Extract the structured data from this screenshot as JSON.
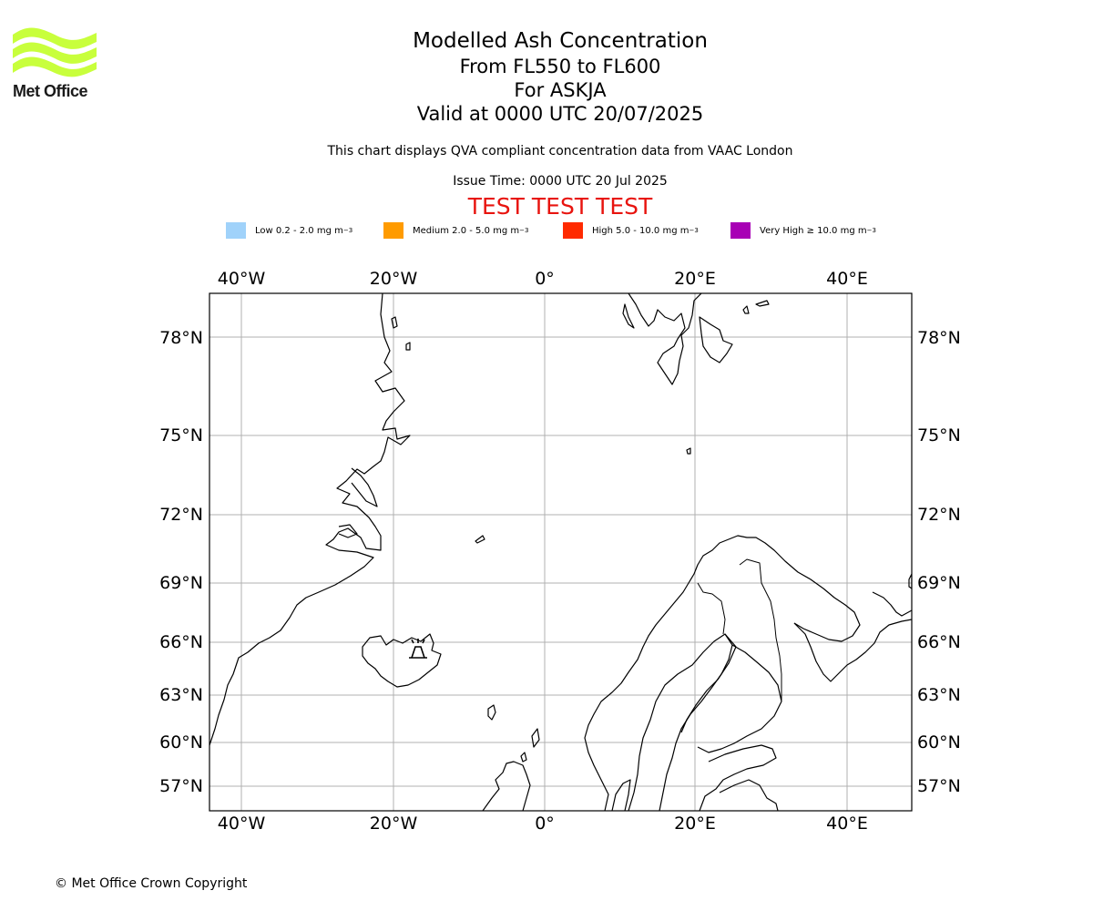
{
  "logo": {
    "text": "Met Office",
    "color": "#c8ff3c"
  },
  "title": {
    "main": "Modelled Ash Concentration",
    "levels": "From FL550 to FL600",
    "volcano": "For ASKJA",
    "valid": "Valid at 0000 UTC 20/07/2025"
  },
  "description": "This chart displays QVA compliant concentration data from VAAC London",
  "issue_time": "Issue Time: 0000 UTC 20 Jul 2025",
  "test_banner": "TEST TEST TEST",
  "legend": [
    {
      "label": "Low 0.2 - 2.0 mg m",
      "exp": "−3",
      "color": "#a0d2fa"
    },
    {
      "label": "Medium 2.0 - 5.0 mg m",
      "exp": "−3",
      "color": "#ff9b00"
    },
    {
      "label": "High 5.0 - 10.0 mg m",
      "exp": "−3",
      "color": "#ff2a00"
    },
    {
      "label": "Very High  ≥  10.0 mg m",
      "exp": "−3",
      "color": "#a800b5"
    }
  ],
  "map": {
    "lon_ticks": [
      "40°W",
      "20°W",
      "0°",
      "20°E",
      "40°E"
    ],
    "lat_ticks": [
      "78°N",
      "75°N",
      "72°N",
      "69°N",
      "66°N",
      "63°N",
      "60°N",
      "57°N"
    ],
    "volcano_marker": "volcano-icon"
  },
  "copyright": "© Met Office Crown Copyright"
}
